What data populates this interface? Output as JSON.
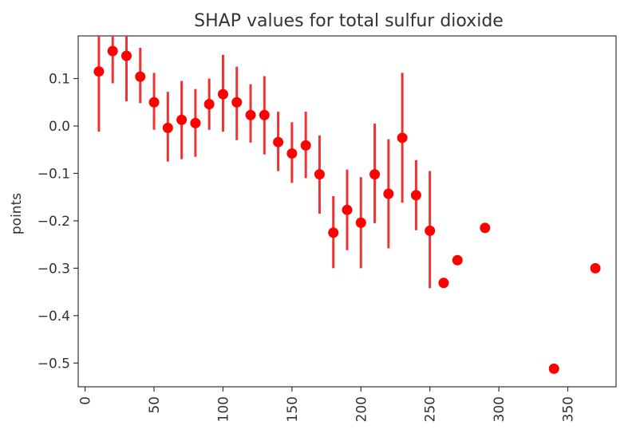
{
  "chart_data": {
    "type": "scatter",
    "title": "SHAP values for total sulfur dioxide",
    "xlabel": "",
    "ylabel": "points",
    "xlim": [
      -5,
      385
    ],
    "ylim": [
      -0.55,
      0.19
    ],
    "grid": false,
    "x_ticks": [
      0,
      50,
      100,
      150,
      200,
      250,
      300,
      350
    ],
    "y_ticks": [
      0.1,
      0.0,
      -0.1,
      -0.2,
      -0.3,
      -0.4,
      -0.5
    ],
    "x_tick_labels": [
      "0",
      "50",
      "100",
      "150",
      "200",
      "250",
      "300",
      "350"
    ],
    "y_tick_labels": [
      "0.1",
      "0.0",
      "−0.1",
      "−0.2",
      "−0.3",
      "−0.4",
      "−0.5"
    ],
    "point_color": "#ff0000",
    "errorbar_color": "#ee3333",
    "points": [
      {
        "x": 10,
        "y": 0.115,
        "lo": -0.012,
        "hi": 0.19
      },
      {
        "x": 20,
        "y": 0.158,
        "lo": 0.09,
        "hi": 0.19
      },
      {
        "x": 30,
        "y": 0.148,
        "lo": 0.052,
        "hi": 0.19
      },
      {
        "x": 40,
        "y": 0.104,
        "lo": 0.048,
        "hi": 0.165
      },
      {
        "x": 50,
        "y": 0.05,
        "lo": -0.008,
        "hi": 0.112
      },
      {
        "x": 60,
        "y": -0.004,
        "lo": -0.075,
        "hi": 0.072
      },
      {
        "x": 70,
        "y": 0.013,
        "lo": -0.07,
        "hi": 0.095
      },
      {
        "x": 80,
        "y": 0.006,
        "lo": -0.065,
        "hi": 0.078
      },
      {
        "x": 90,
        "y": 0.046,
        "lo": -0.008,
        "hi": 0.1
      },
      {
        "x": 100,
        "y": 0.067,
        "lo": -0.012,
        "hi": 0.15
      },
      {
        "x": 110,
        "y": 0.05,
        "lo": -0.03,
        "hi": 0.125
      },
      {
        "x": 120,
        "y": 0.023,
        "lo": -0.035,
        "hi": 0.088
      },
      {
        "x": 130,
        "y": 0.023,
        "lo": -0.06,
        "hi": 0.105
      },
      {
        "x": 140,
        "y": -0.034,
        "lo": -0.095,
        "hi": 0.03
      },
      {
        "x": 150,
        "y": -0.058,
        "lo": -0.12,
        "hi": 0.008
      },
      {
        "x": 160,
        "y": -0.041,
        "lo": -0.11,
        "hi": 0.03
      },
      {
        "x": 170,
        "y": -0.102,
        "lo": -0.185,
        "hi": -0.02
      },
      {
        "x": 180,
        "y": -0.225,
        "lo": -0.3,
        "hi": -0.148
      },
      {
        "x": 190,
        "y": -0.177,
        "lo": -0.262,
        "hi": -0.092
      },
      {
        "x": 200,
        "y": -0.204,
        "lo": -0.3,
        "hi": -0.108
      },
      {
        "x": 210,
        "y": -0.102,
        "lo": -0.205,
        "hi": 0.005
      },
      {
        "x": 220,
        "y": -0.143,
        "lo": -0.258,
        "hi": -0.028
      },
      {
        "x": 230,
        "y": -0.025,
        "lo": -0.162,
        "hi": 0.112
      },
      {
        "x": 240,
        "y": -0.146,
        "lo": -0.22,
        "hi": -0.072
      },
      {
        "x": 250,
        "y": -0.221,
        "lo": -0.342,
        "hi": -0.095
      },
      {
        "x": 260,
        "y": -0.331
      },
      {
        "x": 270,
        "y": -0.283
      },
      {
        "x": 290,
        "y": -0.215
      },
      {
        "x": 340,
        "y": -0.512
      },
      {
        "x": 370,
        "y": -0.3
      }
    ]
  }
}
